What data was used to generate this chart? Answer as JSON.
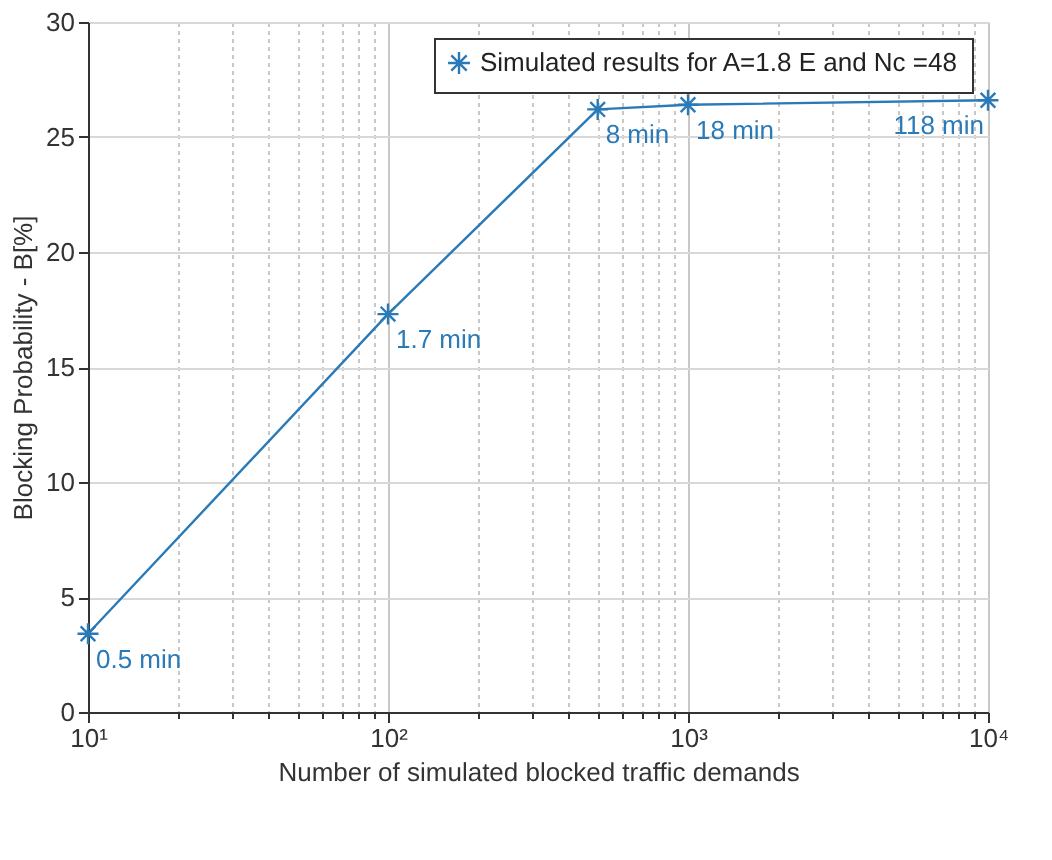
{
  "chart_data": {
    "type": "line",
    "xlabel": "Number of simulated blocked traffic demands",
    "ylabel": "Blocking Probability - B[%]",
    "x": [
      10,
      100,
      500,
      1000,
      10000
    ],
    "series": [
      {
        "name": "Simulated results for A=1.8 E and Nc =48",
        "color": "#2a7ab8",
        "values": [
          3.4,
          17.3,
          26.2,
          26.4,
          26.6
        ]
      }
    ],
    "log": "x",
    "xlim": [
      10,
      10000
    ],
    "ylim": [
      0,
      30
    ],
    "xticks": [
      {
        "value": 10,
        "label": "10¹"
      },
      {
        "value": 20,
        "label": null
      },
      {
        "value": 30,
        "label": null
      },
      {
        "value": 40,
        "label": null
      },
      {
        "value": 50,
        "label": null
      },
      {
        "value": 60,
        "label": null
      },
      {
        "value": 70,
        "label": null
      },
      {
        "value": 80,
        "label": null
      },
      {
        "value": 90,
        "label": null
      },
      {
        "value": 100,
        "label": "10²"
      },
      {
        "value": 200,
        "label": null
      },
      {
        "value": 300,
        "label": null
      },
      {
        "value": 400,
        "label": null
      },
      {
        "value": 500,
        "label": null
      },
      {
        "value": 600,
        "label": null
      },
      {
        "value": 700,
        "label": null
      },
      {
        "value": 800,
        "label": null
      },
      {
        "value": 900,
        "label": null
      },
      {
        "value": 1000,
        "label": "10³"
      },
      {
        "value": 2000,
        "label": null
      },
      {
        "value": 3000,
        "label": null
      },
      {
        "value": 4000,
        "label": null
      },
      {
        "value": 5000,
        "label": null
      },
      {
        "value": 6000,
        "label": null
      },
      {
        "value": 7000,
        "label": null
      },
      {
        "value": 8000,
        "label": null
      },
      {
        "value": 9000,
        "label": null
      },
      {
        "value": 10000,
        "label": "10⁴"
      }
    ],
    "yticks": [
      0,
      5,
      10,
      15,
      20,
      25,
      30
    ],
    "grid": true,
    "legend": "top right",
    "marker": "cross",
    "line_style": "solid",
    "annotations": [
      {
        "text": "0.5 min",
        "x": 10,
        "y": 3.4
      },
      {
        "text": "1.7 min",
        "x": 100,
        "y": 17.3
      },
      {
        "text": "8 min",
        "x": 500,
        "y": 26.2
      },
      {
        "text": "18 min",
        "x": 1000,
        "y": 26.4
      },
      {
        "text": "118 min",
        "x": 10000,
        "y": 26.6
      }
    ]
  }
}
